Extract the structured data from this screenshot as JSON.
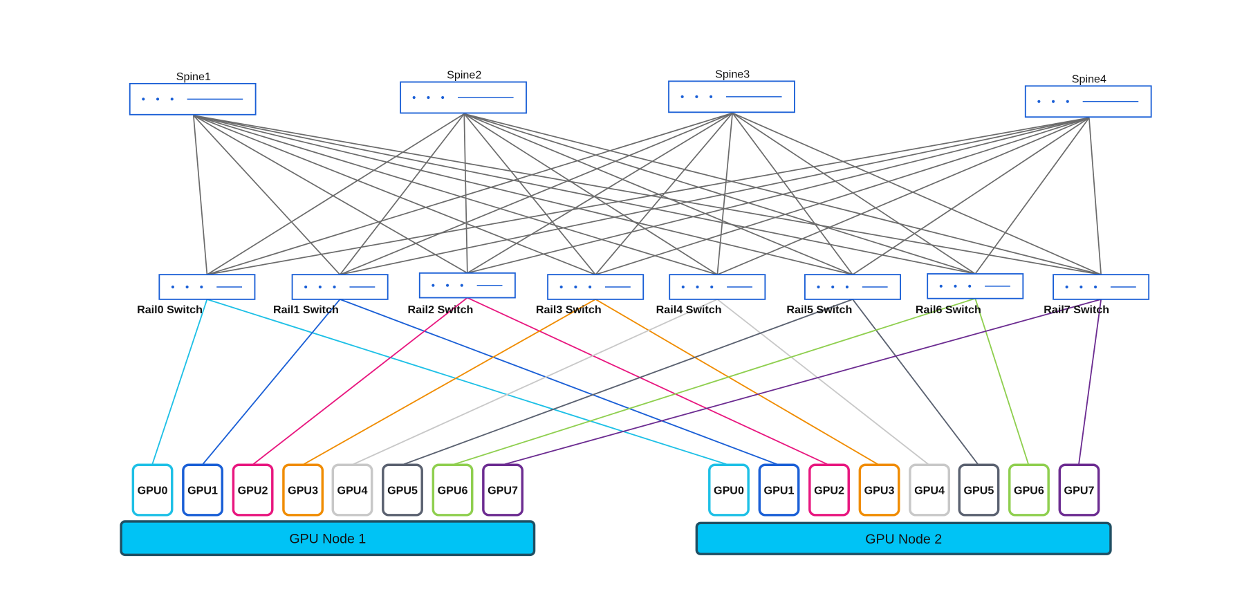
{
  "spines": [
    {
      "label": "Spine1"
    },
    {
      "label": "Spine2"
    },
    {
      "label": "Spine3"
    },
    {
      "label": "Spine4"
    }
  ],
  "rails": [
    {
      "label": "Rail0 Switch"
    },
    {
      "label": "Rail1 Switch"
    },
    {
      "label": "Rail2 Switch"
    },
    {
      "label": "Rail3 Switch"
    },
    {
      "label": "Rail4 Switch"
    },
    {
      "label": "Rail5 Switch"
    },
    {
      "label": "Rail6 Switch"
    },
    {
      "label": "Rail7 Switch"
    }
  ],
  "nodes": [
    {
      "label": "GPU Node 1",
      "gpus": [
        "GPU0",
        "GPU1",
        "GPU2",
        "GPU3",
        "GPU4",
        "GPU5",
        "GPU6",
        "GPU7"
      ]
    },
    {
      "label": "GPU Node 2",
      "gpus": [
        "GPU0",
        "GPU1",
        "GPU2",
        "GPU3",
        "GPU4",
        "GPU5",
        "GPU6",
        "GPU7"
      ]
    }
  ]
}
